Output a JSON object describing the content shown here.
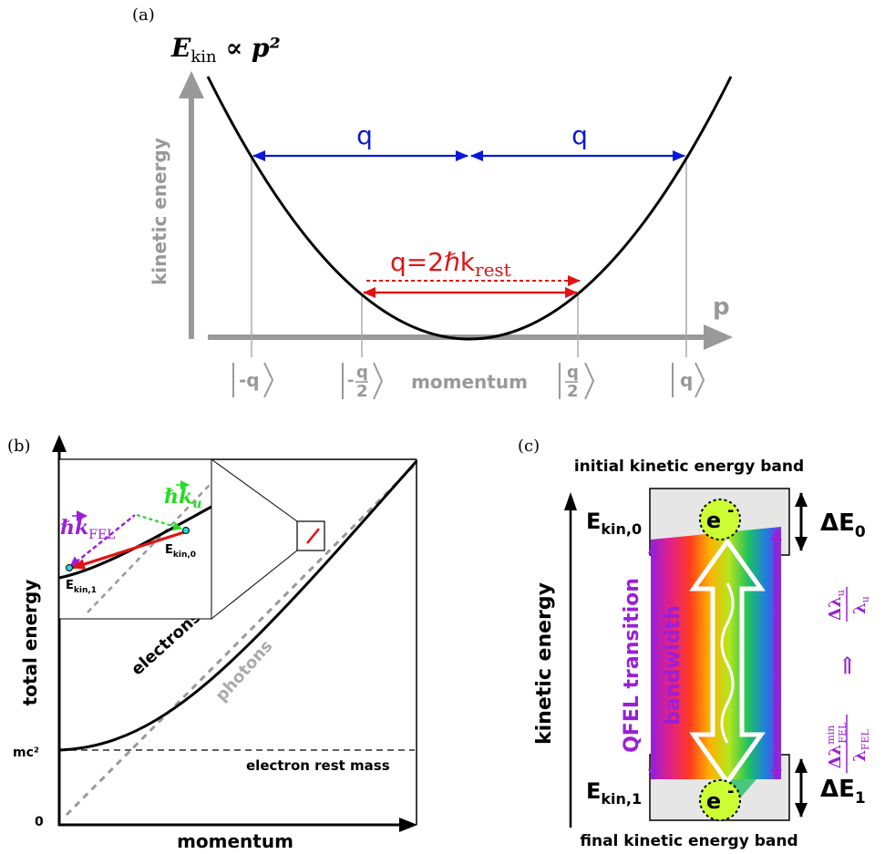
{
  "panel_a": {
    "label": "(a)",
    "formula_main": "E",
    "formula_sub": "kin",
    "formula_rest": " ∝ p²",
    "y_axis_label": "kinetic energy",
    "x_axis_letter": "p",
    "q_left": "q",
    "q_right": "q",
    "q_red_main": "q=2ℏk",
    "q_red_sub": "rest",
    "x_axis_label": "momentum",
    "ket_minus_q": "-q",
    "ket_minus_half_num": "-",
    "ket_minus_half_q": "q",
    "ket_minus_half_den": "2",
    "ket_half_q": "q",
    "ket_half_den": "2",
    "ket_q": "q",
    "colors": {
      "gray": "#999999",
      "blue": "#0a18d6",
      "red": "#e01414"
    }
  },
  "panel_b": {
    "label": "(b)",
    "y_axis_label": "total energy",
    "x_axis_label": "momentum",
    "mc2": "mc²",
    "zero": "0",
    "rest_mass_label": "electron rest mass",
    "electrons_label": "electrons",
    "photons_label": "photons",
    "inset_fel_main": "ℏk",
    "inset_fel_sub": "FEL",
    "inset_u_main": "ℏk",
    "inset_u_sub": "u",
    "inset_ekin0_main": "E",
    "inset_ekin0_sub": "kin,0",
    "inset_ekin1_main": "E",
    "inset_ekin1_sub": "kin,1",
    "colors": {
      "purple": "#9b1fd6",
      "green": "#22dd22",
      "red": "#e01414"
    }
  },
  "panel_c": {
    "label": "(c)",
    "top_label": "initial kinetic energy band",
    "bottom_label": "final kinetic energy band",
    "y_axis_label": "kinetic energy",
    "ekin0_main": "E",
    "ekin0_sub": "kin,0",
    "ekin1_main": "E",
    "ekin1_sub": "kin,1",
    "de0_main": "ΔE",
    "de0_sub": "0",
    "de1_main": "ΔE",
    "de1_sub": "1",
    "electron": "e",
    "electron_sup": "-",
    "qfel_line1": "QFEL transition",
    "qfel_line2": "bandwidth",
    "frac1_num": "Δλ",
    "frac1_num_sup": "min",
    "frac1_num_sub": "FEL",
    "frac1_den": "λ",
    "frac1_den_sub": "FEL",
    "arrow_symbol": "⇒",
    "frac2_num": "Δλ",
    "frac2_num_sub": "u",
    "frac2_den": "λ",
    "frac2_den_sub": "u",
    "colors": {
      "purple": "#9b1fd6",
      "band": "#e6e6e6",
      "electron": "#ccff33"
    }
  }
}
